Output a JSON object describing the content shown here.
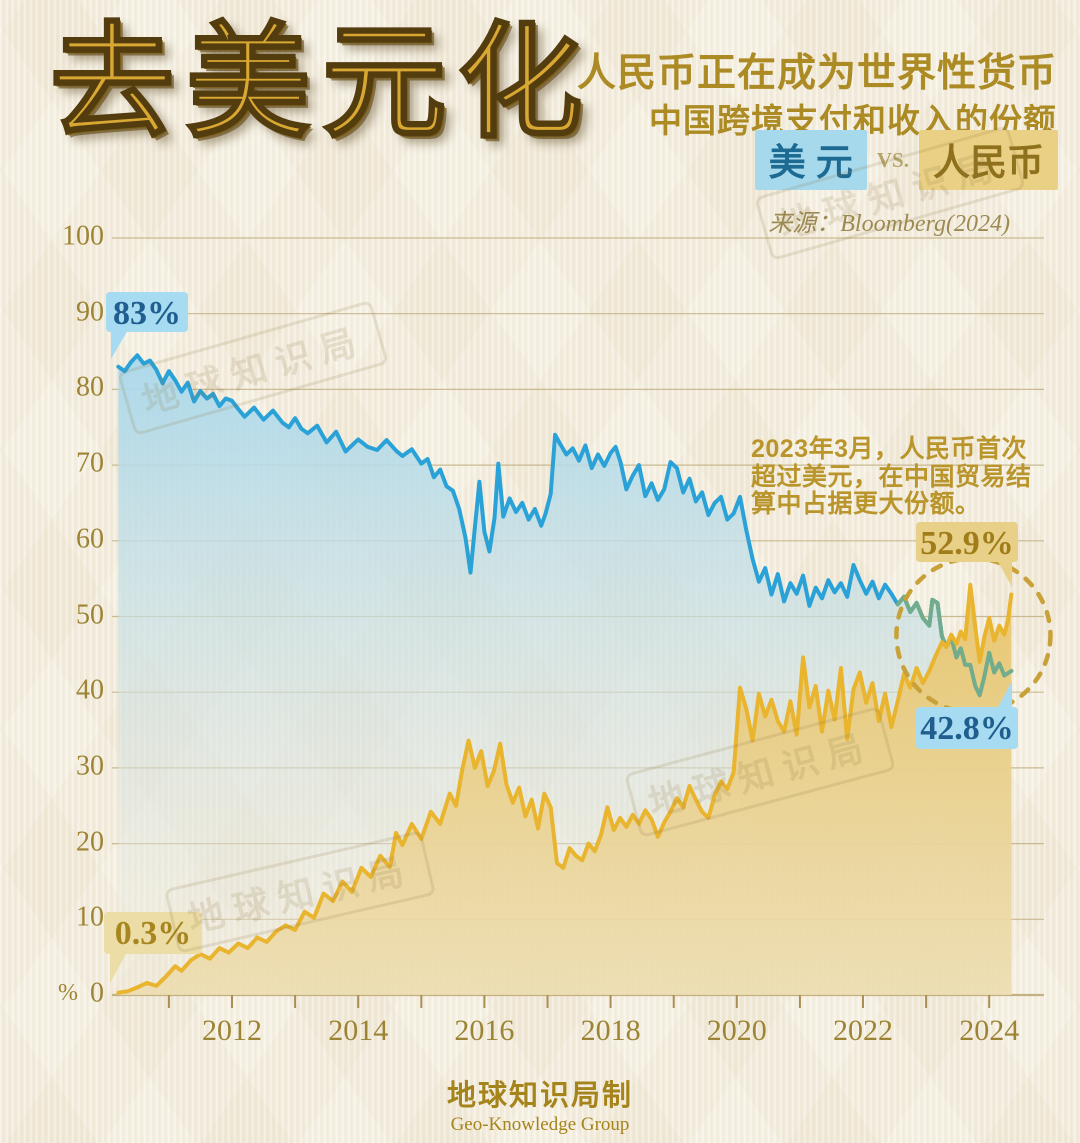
{
  "title": "去美元化",
  "header": {
    "line1": "人民币正在成为世界性货币",
    "line2": "中国跨境支付和收入的份额"
  },
  "legend": {
    "usd": "美 元",
    "vs": "VS.",
    "rmb": "人民币"
  },
  "source": "来源：Bloomberg(2024)",
  "annotation": {
    "line1": "2023年3月，人民币首次",
    "line2": "超过美元，在中国贸易结",
    "line3": "算中占据更大份额。"
  },
  "labels": {
    "usd_start": "83%",
    "usd_end": "42.8%",
    "rmb_start": "0.3%",
    "rmb_end": "52.9%"
  },
  "watermark": "地球知识局",
  "footer": {
    "line1": "地球知识局制",
    "line2": "Geo-Knowledge Group"
  },
  "colors": {
    "usd_line": "#2aa2d8",
    "usd_fill_top": "#a9d8ec",
    "usd_fill_bottom": "#f0e9da",
    "rmb_line": "#e9b42e",
    "rmb_fill_top": "#e8c468",
    "rmb_fill_bottom": "#ecdcae",
    "usd_overlap_green": "#72ac8c",
    "grid": "#c3b183",
    "axis": "#a98f54",
    "axis_text": "#9d8435",
    "circle_dash": "#c8a138",
    "bubble_blue_bg": "#a6dbf1",
    "bubble_blue_text": "#1f5e8e",
    "bubble_gold_bg": "#e9d088",
    "bubble_gold_text": "#9f7e1a",
    "title_gold": "#d9a833",
    "heading_gold": "#ac8b24",
    "annotation_gold": "#b9952b"
  },
  "chart_data": {
    "type": "area",
    "title": "中国跨境支付和收入的份额",
    "legend_position": "top-right",
    "grid": true,
    "y_axis": {
      "unit": "%",
      "range": [
        0,
        100
      ],
      "ticks": [
        100,
        90,
        80,
        70,
        60,
        50,
        40,
        30,
        20,
        10,
        0
      ]
    },
    "x_axis": {
      "range": [
        2010.2,
        2024.35
      ],
      "minor_tick_step": 1,
      "tick_years": [
        2012,
        2014,
        2016,
        2018,
        2020,
        2022,
        2024
      ],
      "tick_labels": [
        "2012",
        "2014",
        "2016",
        "2018",
        "2020",
        "2022",
        "2024"
      ]
    },
    "crossover_note": {
      "year_label": "2023年3月",
      "circle_center_year": 2023.75,
      "circle_center_value": 47.5
    },
    "series": [
      {
        "name": "美元",
        "start_value": 83,
        "end_value": 42.8,
        "points": [
          [
            2010.2,
            83.0
          ],
          [
            2010.3,
            82.4
          ],
          [
            2010.4,
            83.6
          ],
          [
            2010.5,
            84.5
          ],
          [
            2010.6,
            83.4
          ],
          [
            2010.7,
            83.8
          ],
          [
            2010.8,
            82.6
          ],
          [
            2010.9,
            80.8
          ],
          [
            2011.0,
            82.4
          ],
          [
            2011.1,
            81.2
          ],
          [
            2011.2,
            79.7
          ],
          [
            2011.3,
            80.9
          ],
          [
            2011.4,
            78.4
          ],
          [
            2011.5,
            79.8
          ],
          [
            2011.6,
            78.8
          ],
          [
            2011.7,
            79.4
          ],
          [
            2011.8,
            77.8
          ],
          [
            2011.9,
            78.8
          ],
          [
            2012.0,
            78.5
          ],
          [
            2012.1,
            77.4
          ],
          [
            2012.2,
            76.4
          ],
          [
            2012.35,
            77.6
          ],
          [
            2012.5,
            76.0
          ],
          [
            2012.65,
            77.2
          ],
          [
            2012.8,
            75.6
          ],
          [
            2012.9,
            75.0
          ],
          [
            2013.0,
            76.2
          ],
          [
            2013.1,
            74.8
          ],
          [
            2013.2,
            74.2
          ],
          [
            2013.35,
            75.2
          ],
          [
            2013.5,
            73.0
          ],
          [
            2013.65,
            74.4
          ],
          [
            2013.8,
            71.8
          ],
          [
            2013.9,
            72.6
          ],
          [
            2014.0,
            73.4
          ],
          [
            2014.15,
            72.4
          ],
          [
            2014.3,
            72.0
          ],
          [
            2014.45,
            73.3
          ],
          [
            2014.6,
            71.9
          ],
          [
            2014.7,
            71.2
          ],
          [
            2014.85,
            72.1
          ],
          [
            2015.0,
            70.2
          ],
          [
            2015.1,
            70.8
          ],
          [
            2015.2,
            68.4
          ],
          [
            2015.3,
            69.4
          ],
          [
            2015.4,
            67.2
          ],
          [
            2015.5,
            66.6
          ],
          [
            2015.6,
            64.2
          ],
          [
            2015.7,
            60.4
          ],
          [
            2015.78,
            55.8
          ],
          [
            2015.85,
            61.8
          ],
          [
            2015.92,
            67.8
          ],
          [
            2016.0,
            61.2
          ],
          [
            2016.08,
            58.6
          ],
          [
            2016.16,
            63.0
          ],
          [
            2016.22,
            70.2
          ],
          [
            2016.3,
            63.2
          ],
          [
            2016.4,
            65.6
          ],
          [
            2016.5,
            63.8
          ],
          [
            2016.6,
            65.0
          ],
          [
            2016.7,
            62.8
          ],
          [
            2016.8,
            64.2
          ],
          [
            2016.9,
            62.0
          ],
          [
            2016.97,
            63.6
          ],
          [
            2017.05,
            66.2
          ],
          [
            2017.12,
            74.0
          ],
          [
            2017.2,
            72.8
          ],
          [
            2017.3,
            71.4
          ],
          [
            2017.4,
            72.2
          ],
          [
            2017.5,
            70.6
          ],
          [
            2017.6,
            72.6
          ],
          [
            2017.7,
            69.6
          ],
          [
            2017.8,
            71.4
          ],
          [
            2017.9,
            69.9
          ],
          [
            2018.0,
            71.6
          ],
          [
            2018.08,
            72.4
          ],
          [
            2018.16,
            70.3
          ],
          [
            2018.25,
            66.8
          ],
          [
            2018.35,
            68.6
          ],
          [
            2018.45,
            70.0
          ],
          [
            2018.55,
            65.9
          ],
          [
            2018.65,
            67.6
          ],
          [
            2018.75,
            65.4
          ],
          [
            2018.85,
            66.8
          ],
          [
            2018.95,
            70.4
          ],
          [
            2019.05,
            69.6
          ],
          [
            2019.15,
            66.4
          ],
          [
            2019.25,
            68.2
          ],
          [
            2019.35,
            65.2
          ],
          [
            2019.45,
            66.4
          ],
          [
            2019.55,
            63.4
          ],
          [
            2019.65,
            65.0
          ],
          [
            2019.75,
            65.8
          ],
          [
            2019.85,
            62.8
          ],
          [
            2019.95,
            63.6
          ],
          [
            2020.05,
            65.8
          ],
          [
            2020.15,
            61.4
          ],
          [
            2020.25,
            57.6
          ],
          [
            2020.35,
            54.6
          ],
          [
            2020.45,
            56.4
          ],
          [
            2020.55,
            52.9
          ],
          [
            2020.65,
            55.6
          ],
          [
            2020.75,
            52.0
          ],
          [
            2020.85,
            54.4
          ],
          [
            2020.95,
            53.0
          ],
          [
            2021.05,
            55.4
          ],
          [
            2021.15,
            51.4
          ],
          [
            2021.25,
            53.8
          ],
          [
            2021.35,
            52.4
          ],
          [
            2021.45,
            54.8
          ],
          [
            2021.55,
            53.2
          ],
          [
            2021.65,
            54.4
          ],
          [
            2021.75,
            52.6
          ],
          [
            2021.85,
            56.8
          ],
          [
            2021.95,
            54.8
          ],
          [
            2022.05,
            53.0
          ],
          [
            2022.15,
            54.6
          ],
          [
            2022.25,
            52.4
          ],
          [
            2022.35,
            54.2
          ],
          [
            2022.45,
            53.0
          ],
          [
            2022.55,
            51.6
          ],
          [
            2022.65,
            52.6
          ],
          [
            2022.75,
            50.6
          ],
          [
            2022.85,
            51.8
          ],
          [
            2022.95,
            49.8
          ],
          [
            2023.05,
            48.8
          ],
          [
            2023.1,
            52.2
          ],
          [
            2023.18,
            51.8
          ],
          [
            2023.25,
            47.4
          ],
          [
            2023.32,
            46.0
          ],
          [
            2023.4,
            47.2
          ],
          [
            2023.48,
            44.6
          ],
          [
            2023.55,
            45.8
          ],
          [
            2023.62,
            43.6
          ],
          [
            2023.7,
            43.6
          ],
          [
            2023.78,
            40.8
          ],
          [
            2023.85,
            39.6
          ],
          [
            2023.92,
            42.0
          ],
          [
            2024.0,
            45.2
          ],
          [
            2024.08,
            42.6
          ],
          [
            2024.16,
            43.8
          ],
          [
            2024.24,
            42.2
          ],
          [
            2024.35,
            42.8
          ]
        ]
      },
      {
        "name": "人民币",
        "start_value": 0.3,
        "end_value": 52.9,
        "points": [
          [
            2010.2,
            0.3
          ],
          [
            2010.35,
            0.5
          ],
          [
            2010.5,
            1.0
          ],
          [
            2010.65,
            1.6
          ],
          [
            2010.8,
            1.2
          ],
          [
            2010.95,
            2.4
          ],
          [
            2011.1,
            3.8
          ],
          [
            2011.2,
            3.2
          ],
          [
            2011.35,
            4.6
          ],
          [
            2011.5,
            5.4
          ],
          [
            2011.65,
            4.8
          ],
          [
            2011.8,
            6.2
          ],
          [
            2011.95,
            5.6
          ],
          [
            2012.1,
            6.8
          ],
          [
            2012.25,
            6.2
          ],
          [
            2012.4,
            7.6
          ],
          [
            2012.55,
            7.0
          ],
          [
            2012.7,
            8.4
          ],
          [
            2012.85,
            9.2
          ],
          [
            2013.0,
            8.6
          ],
          [
            2013.15,
            11.0
          ],
          [
            2013.3,
            10.2
          ],
          [
            2013.45,
            13.4
          ],
          [
            2013.6,
            12.4
          ],
          [
            2013.75,
            15.0
          ],
          [
            2013.9,
            13.6
          ],
          [
            2014.05,
            16.8
          ],
          [
            2014.2,
            15.6
          ],
          [
            2014.35,
            18.4
          ],
          [
            2014.5,
            16.9
          ],
          [
            2014.6,
            21.4
          ],
          [
            2014.7,
            19.8
          ],
          [
            2014.85,
            22.6
          ],
          [
            2015.0,
            20.6
          ],
          [
            2015.15,
            24.2
          ],
          [
            2015.3,
            22.6
          ],
          [
            2015.45,
            26.6
          ],
          [
            2015.55,
            25.0
          ],
          [
            2015.65,
            29.8
          ],
          [
            2015.75,
            33.6
          ],
          [
            2015.85,
            30.0
          ],
          [
            2015.95,
            32.2
          ],
          [
            2016.05,
            27.6
          ],
          [
            2016.15,
            29.6
          ],
          [
            2016.25,
            33.2
          ],
          [
            2016.35,
            27.8
          ],
          [
            2016.45,
            25.4
          ],
          [
            2016.55,
            27.4
          ],
          [
            2016.65,
            23.6
          ],
          [
            2016.75,
            25.8
          ],
          [
            2016.85,
            22.0
          ],
          [
            2016.95,
            26.6
          ],
          [
            2017.05,
            24.8
          ],
          [
            2017.15,
            17.4
          ],
          [
            2017.25,
            16.8
          ],
          [
            2017.35,
            19.4
          ],
          [
            2017.45,
            18.4
          ],
          [
            2017.55,
            17.8
          ],
          [
            2017.65,
            20.0
          ],
          [
            2017.75,
            19.0
          ],
          [
            2017.85,
            21.2
          ],
          [
            2017.95,
            24.8
          ],
          [
            2018.05,
            21.8
          ],
          [
            2018.15,
            23.4
          ],
          [
            2018.25,
            22.2
          ],
          [
            2018.35,
            23.8
          ],
          [
            2018.45,
            22.6
          ],
          [
            2018.55,
            24.4
          ],
          [
            2018.65,
            23.2
          ],
          [
            2018.75,
            20.9
          ],
          [
            2018.85,
            22.8
          ],
          [
            2018.95,
            24.2
          ],
          [
            2019.05,
            26.0
          ],
          [
            2019.15,
            24.8
          ],
          [
            2019.25,
            27.6
          ],
          [
            2019.35,
            25.8
          ],
          [
            2019.45,
            24.2
          ],
          [
            2019.55,
            23.4
          ],
          [
            2019.65,
            26.4
          ],
          [
            2019.75,
            28.2
          ],
          [
            2019.85,
            27.2
          ],
          [
            2019.95,
            29.4
          ],
          [
            2020.05,
            40.6
          ],
          [
            2020.15,
            37.8
          ],
          [
            2020.25,
            33.6
          ],
          [
            2020.35,
            39.8
          ],
          [
            2020.45,
            36.8
          ],
          [
            2020.55,
            39.0
          ],
          [
            2020.65,
            36.2
          ],
          [
            2020.75,
            34.8
          ],
          [
            2020.85,
            38.8
          ],
          [
            2020.95,
            34.4
          ],
          [
            2021.05,
            44.6
          ],
          [
            2021.15,
            38.0
          ],
          [
            2021.25,
            40.8
          ],
          [
            2021.35,
            34.8
          ],
          [
            2021.45,
            40.2
          ],
          [
            2021.55,
            36.4
          ],
          [
            2021.65,
            43.2
          ],
          [
            2021.75,
            33.8
          ],
          [
            2021.85,
            40.4
          ],
          [
            2021.95,
            42.6
          ],
          [
            2022.05,
            38.6
          ],
          [
            2022.15,
            41.2
          ],
          [
            2022.25,
            36.2
          ],
          [
            2022.35,
            39.8
          ],
          [
            2022.45,
            35.4
          ],
          [
            2022.55,
            38.8
          ],
          [
            2022.65,
            42.4
          ],
          [
            2022.75,
            40.6
          ],
          [
            2022.85,
            43.2
          ],
          [
            2022.95,
            41.2
          ],
          [
            2023.05,
            42.8
          ],
          [
            2023.15,
            44.8
          ],
          [
            2023.25,
            46.6
          ],
          [
            2023.32,
            46.0
          ],
          [
            2023.4,
            47.6
          ],
          [
            2023.48,
            46.4
          ],
          [
            2023.55,
            48.0
          ],
          [
            2023.62,
            47.0
          ],
          [
            2023.7,
            54.2
          ],
          [
            2023.78,
            48.6
          ],
          [
            2023.85,
            44.0
          ],
          [
            2023.92,
            47.2
          ],
          [
            2024.0,
            49.8
          ],
          [
            2024.08,
            46.8
          ],
          [
            2024.16,
            48.8
          ],
          [
            2024.24,
            47.6
          ],
          [
            2024.3,
            49.6
          ],
          [
            2024.35,
            52.9
          ]
        ]
      }
    ]
  }
}
